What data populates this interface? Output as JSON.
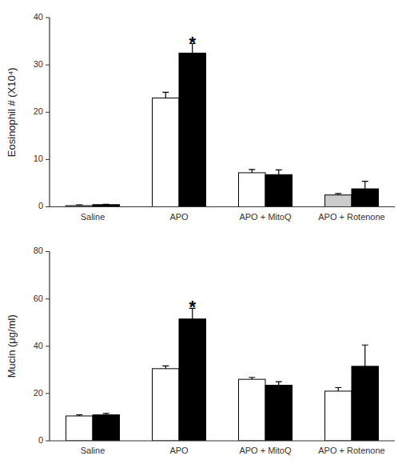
{
  "chart_data": [
    {
      "type": "bar",
      "ylabel": "Eosinophil # (X10⁴)",
      "categories": [
        "Saline",
        "APO",
        "APO + MitoQ",
        "APO + Rotenone"
      ],
      "series": [
        {
          "colors": [
            "#cccccc",
            "#ffffff",
            "#ffffff",
            "#cccccc"
          ],
          "values": [
            0.25,
            23.0,
            7.2,
            2.5
          ],
          "errors": [
            0.15,
            1.2,
            0.7,
            0.3
          ]
        },
        {
          "color": "#000000",
          "values": [
            0.45,
            32.5,
            6.8,
            3.8
          ],
          "errors": [
            0.1,
            2.0,
            1.0,
            1.6
          ]
        }
      ],
      "annotations": [
        {
          "text": "*",
          "category": "APO"
        }
      ],
      "ylim": [
        0,
        40
      ],
      "yticks": [
        0,
        10,
        20,
        30,
        40
      ],
      "grid": false
    },
    {
      "type": "bar",
      "ylabel": "Mucin (μg/ml)",
      "categories": [
        "Saline",
        "APO",
        "APO + MitoQ",
        "APO + Rotenone"
      ],
      "series": [
        {
          "colors": [
            "#ffffff",
            "#ffffff",
            "#ffffff",
            "#ffffff"
          ],
          "values": [
            10.5,
            30.5,
            26.0,
            21.0
          ],
          "errors": [
            0.5,
            1.2,
            0.8,
            1.5
          ]
        },
        {
          "color": "#000000",
          "values": [
            11.0,
            51.5,
            23.5,
            31.5
          ],
          "errors": [
            0.6,
            4.5,
            1.5,
            9.0
          ]
        }
      ],
      "annotations": [
        {
          "text": "*",
          "category": "APO"
        }
      ],
      "ylim": [
        0,
        80
      ],
      "yticks": [
        0,
        20,
        40,
        60,
        80
      ],
      "grid": false
    }
  ]
}
